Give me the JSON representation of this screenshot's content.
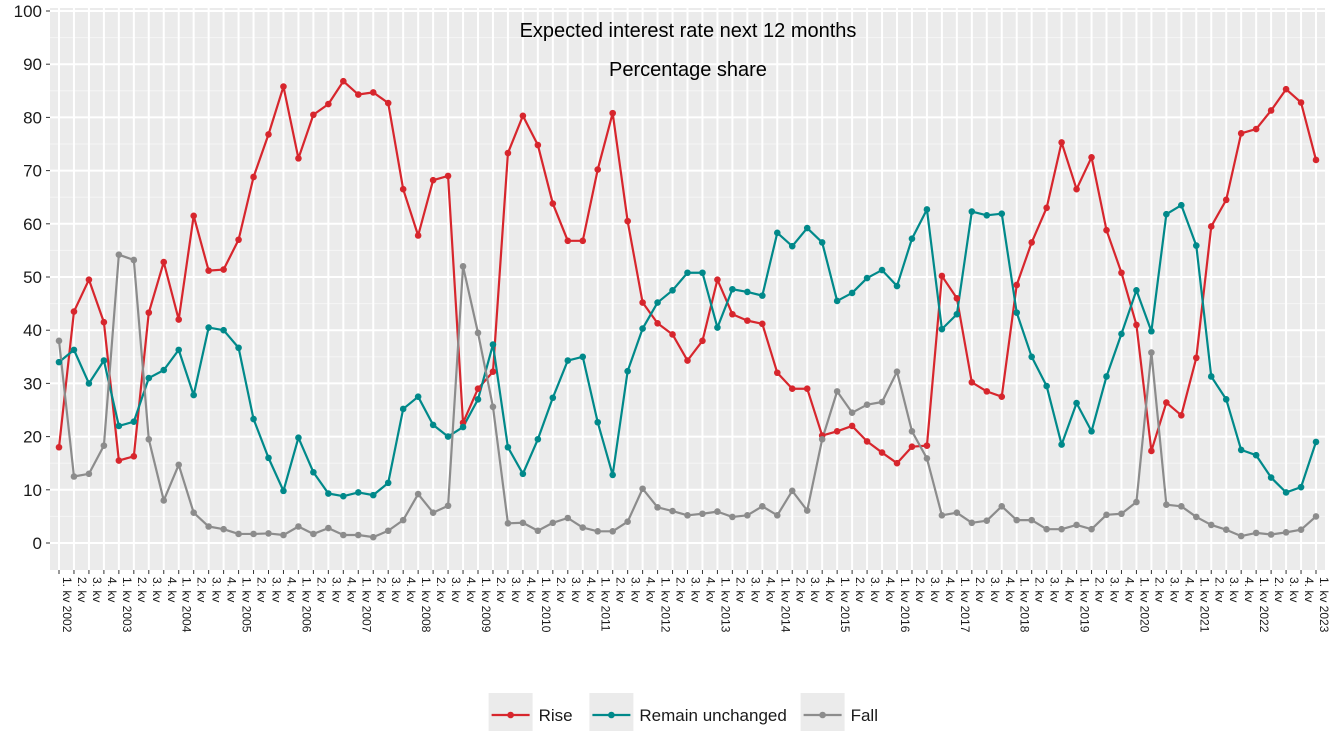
{
  "chart_data": {
    "type": "line",
    "title": "Expected interest rate next 12 months",
    "subtitle": "Percentage share",
    "xlabel": "",
    "ylabel": "",
    "ylim": [
      0,
      100
    ],
    "yticks": [
      0,
      10,
      20,
      30,
      40,
      50,
      60,
      70,
      80,
      90,
      100
    ],
    "grid": true,
    "legend_position": "bottom",
    "year_start": 2002,
    "categories": [
      "1. kv 2002",
      "2. kv",
      "3. kv",
      "4. kv",
      "1. kv 2003",
      "2. kv",
      "3. kv",
      "4. kv",
      "1. kv 2004",
      "2. kv",
      "3. kv",
      "4. kv",
      "1. kv 2005",
      "2. kv",
      "3. kv",
      "4. kv",
      "1. kv 2006",
      "2. kv",
      "3. kv",
      "4. kv",
      "1. kv 2007",
      "2. kv",
      "3. kv",
      "4. kv",
      "1. kv 2008",
      "2. kv",
      "3. kv",
      "4. kv",
      "1. kv 2009",
      "2. kv",
      "3. kv",
      "4. kv",
      "1. kv 2010",
      "2. kv",
      "3. kv",
      "4. kv",
      "1. kv 2011",
      "2. kv",
      "3. kv",
      "4. kv",
      "1. kv 2012",
      "2. kv",
      "3. kv",
      "4. kv",
      "1. kv 2013",
      "2. kv",
      "3. kv",
      "4. kv",
      "1. kv 2014",
      "2. kv",
      "3. kv",
      "4. kv",
      "1. kv 2015",
      "2. kv",
      "3. kv",
      "4. kv",
      "1. kv 2016",
      "2. kv",
      "3. kv",
      "4. kv",
      "1. kv 2017",
      "2. kv",
      "3. kv",
      "4. kv",
      "1. kv 2018",
      "2. kv",
      "3. kv",
      "4. kv",
      "1. kv 2019",
      "2. kv",
      "3. kv",
      "4. kv",
      "1. kv 2020",
      "2. kv",
      "3. kv",
      "4. kv",
      "1. kv 2021",
      "2. kv",
      "3. kv",
      "4. kv",
      "1. kv 2022",
      "2. kv",
      "3. kv",
      "4. kv",
      "1. kv 2023"
    ],
    "series": [
      {
        "name": "Rise",
        "color": "#d7262d",
        "values": [
          18,
          43.5,
          49.5,
          41.5,
          15.5,
          16.3,
          43.3,
          52.8,
          42,
          61.5,
          51.2,
          51.4,
          57,
          68.8,
          76.8,
          85.8,
          72.3,
          80.5,
          82.5,
          86.8,
          84.3,
          84.7,
          82.7,
          66.5,
          57.8,
          68.2,
          69,
          22.6,
          29,
          32.2,
          73.3,
          80.3,
          74.8,
          63.8,
          56.8,
          56.8,
          70.2,
          80.8,
          60.5,
          45.2,
          41.3,
          39.2,
          34.3,
          38,
          49.5,
          43,
          41.8,
          41.2,
          32,
          29,
          29,
          20.2,
          21,
          22,
          19.1,
          17,
          15,
          18.1,
          18.3,
          50.2,
          46,
          30.2,
          28.5,
          27.5,
          48.5,
          56.5,
          63,
          75.3,
          66.5,
          72.5,
          58.8,
          50.8,
          41,
          17.3,
          26.4,
          24,
          34.8,
          59.5,
          64.5,
          77,
          77.8,
          81.3,
          85.3,
          82.8,
          72
        ]
      },
      {
        "name": "Remain unchanged",
        "color": "#00898a",
        "values": [
          34,
          36.3,
          30,
          34.3,
          22,
          22.8,
          31,
          32.5,
          36.3,
          27.8,
          40.5,
          40,
          36.7,
          23.3,
          16,
          9.8,
          19.8,
          13.3,
          9.3,
          8.8,
          9.5,
          9,
          11.3,
          25.2,
          27.5,
          22.2,
          20,
          21.8,
          27,
          37.3,
          18,
          13,
          19.5,
          27.3,
          34.3,
          35,
          22.7,
          12.8,
          32.3,
          40.3,
          45.2,
          47.5,
          50.8,
          50.8,
          40.5,
          47.7,
          47.2,
          46.5,
          58.3,
          55.8,
          59.2,
          56.5,
          45.5,
          47,
          49.8,
          51.3,
          48.3,
          57.2,
          62.7,
          40.2,
          43,
          62.3,
          61.6,
          61.9,
          43.3,
          35,
          29.5,
          18.5,
          26.3,
          21,
          31.3,
          39.3,
          47.5,
          39.8,
          61.8,
          63.5,
          55.9,
          31.3,
          27,
          17.5,
          16.5,
          12.3,
          9.5,
          10.5,
          19
        ]
      },
      {
        "name": "Fall",
        "color": "#8c8c8c",
        "values": [
          38,
          12.5,
          13,
          18.3,
          54.2,
          53.2,
          19.5,
          8,
          14.7,
          5.7,
          3.1,
          2.6,
          1.7,
          1.7,
          1.8,
          1.5,
          3.1,
          1.7,
          2.8,
          1.5,
          1.5,
          1.1,
          2.3,
          4.3,
          9.2,
          5.7,
          7,
          52,
          39.5,
          25.6,
          3.7,
          3.8,
          2.3,
          3.8,
          4.7,
          2.9,
          2.2,
          2.2,
          4,
          10.2,
          6.7,
          6,
          5.2,
          5.5,
          5.9,
          4.9,
          5.2,
          6.9,
          5.2,
          9.8,
          6.1,
          19.5,
          28.5,
          24.5,
          26,
          26.5,
          32.2,
          21,
          15.9,
          5.2,
          5.7,
          3.8,
          4.2,
          6.9,
          4.3,
          4.3,
          2.6,
          2.6,
          3.4,
          2.6,
          5.3,
          5.5,
          7.7,
          35.8,
          7.2,
          6.9,
          4.9,
          3.4,
          2.5,
          1.3,
          1.9,
          1.6,
          2,
          2.5,
          5
        ]
      }
    ]
  }
}
